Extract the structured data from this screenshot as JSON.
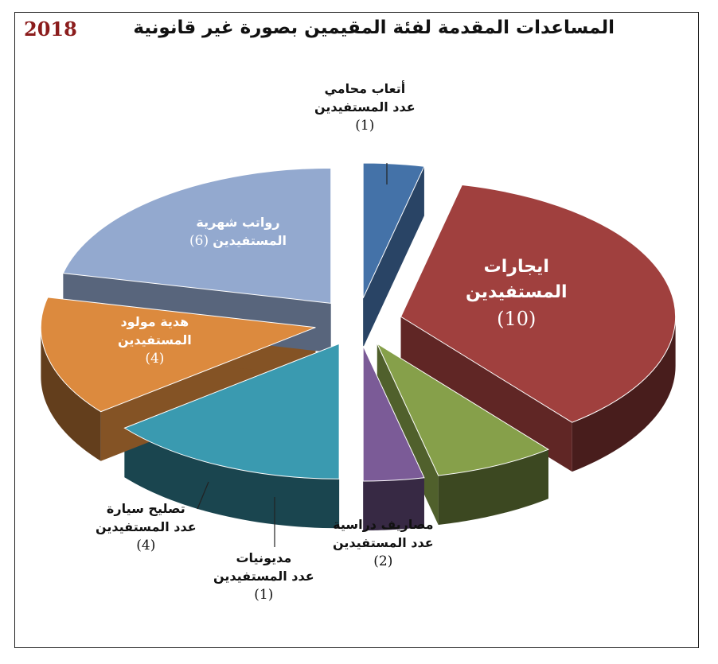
{
  "chart_data": {
    "type": "pie",
    "title": "المساعدات المقدمة لفئة المقيمين بصورة غير قانونية",
    "year": "2018",
    "slices": [
      {
        "name": "أتعاب محامي",
        "sub": "عدد المستفيدين",
        "value": 1,
        "count_label": "(1)",
        "color": "#4472a8"
      },
      {
        "name": "ايجارات",
        "sub": "المستفيدين",
        "value": 10,
        "count_label": "(10)",
        "color": "#a0403e"
      },
      {
        "name": "مصاريف دراسية",
        "sub": "عدد المستفيدين",
        "value": 2,
        "count_label": "(2)",
        "color": "#86a04a"
      },
      {
        "name": "مديونيات",
        "sub": "عدد المستفيدين",
        "value": 1,
        "count_label": "(1)",
        "color": "#7b5b97"
      },
      {
        "name": "تصليح سيارة",
        "sub": "عدد المستفيدين",
        "value": 4,
        "count_label": "(4)",
        "color": "#3a9ab0"
      },
      {
        "name": "هدية مولود",
        "sub": "المستفيدين",
        "value": 4,
        "count_label": "(4)",
        "color": "#dc8a3e"
      },
      {
        "name": "رواتب شهرية",
        "sub": "المستفيدين",
        "value": 6,
        "count_label": "(6)",
        "color": "#93a9cf"
      }
    ]
  }
}
